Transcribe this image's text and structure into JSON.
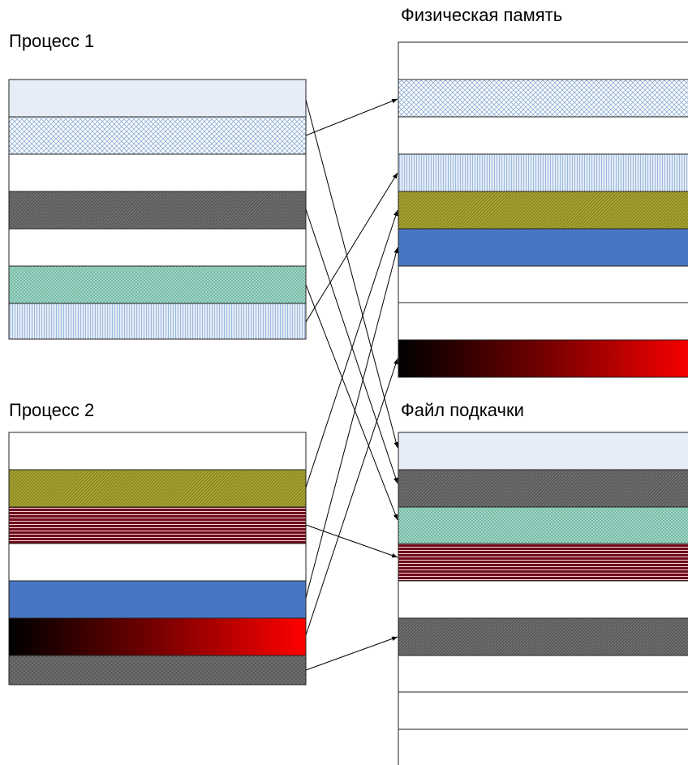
{
  "labels": {
    "process1": "Процесс 1",
    "process2": "Процесс 2",
    "physical_memory": "Физическая память",
    "swap_file": "Файл подкачки"
  },
  "colors": {
    "border": "#1a1a1a",
    "light_blue": "#e6edf7",
    "crosshatch_blue": "#b9cfe8",
    "dark_gray": "#5a5a5a",
    "teal": "#9fd4c6",
    "stripe_blue": "#c7d7ec",
    "olive": "#8d8a1f",
    "dark_red": "#7a1020",
    "blue": "#4876c2",
    "gradient_start": "#000000",
    "gradient_end": "#ff0000"
  },
  "process1_pages": [
    "light_blue",
    "crosshatch_blue",
    "empty",
    "dark_gray",
    "empty",
    "teal",
    "stripe_blue"
  ],
  "process2_pages": [
    "empty",
    "olive",
    "dark_red",
    "empty",
    "blue",
    "gradient_red",
    "dark_gray"
  ],
  "physical_memory_frames": [
    "empty",
    "crosshatch_blue",
    "empty",
    "stripe_blue",
    "olive",
    "blue",
    "empty",
    "empty",
    "gradient_red"
  ],
  "swap_file_slots": [
    "light_blue",
    "dark_gray",
    "teal",
    "dark_red",
    "empty",
    "dark_gray",
    "empty",
    "empty",
    "empty"
  ]
}
